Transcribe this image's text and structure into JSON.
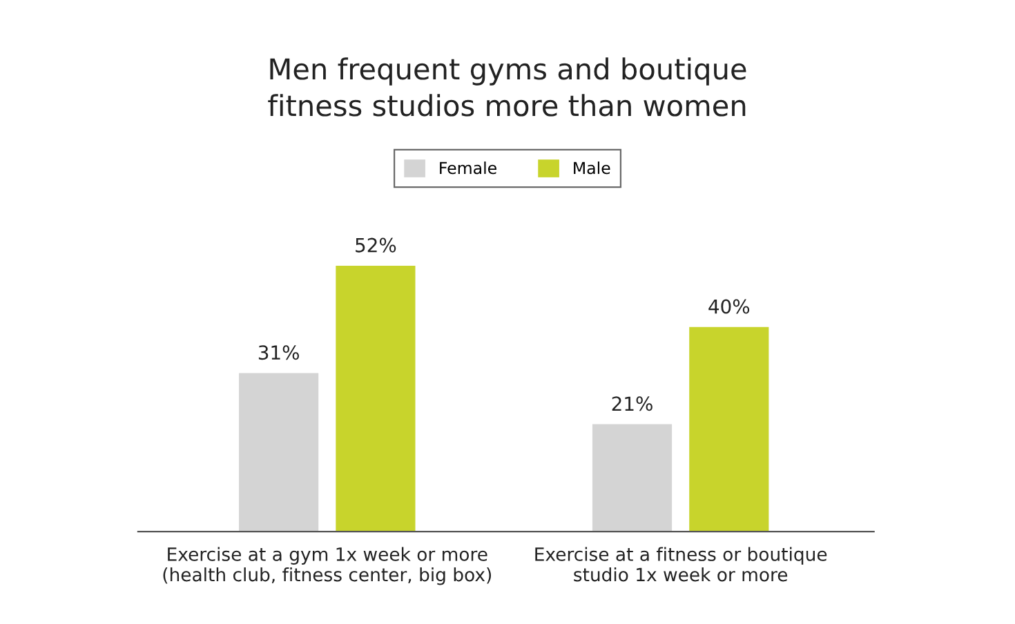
{
  "chart_data": {
    "type": "bar",
    "title": "Men frequent gyms and boutique\nfitness studios more than women",
    "categories": [
      "Exercise at a gym 1x week or more\n(health club, fitness center, big box)",
      "Exercise at a fitness or boutique\nstudio 1x week or more"
    ],
    "series": [
      {
        "name": "Female",
        "color": "#d4d4d4",
        "values": [
          31,
          21
        ],
        "value_labels": [
          "31%",
          "21%"
        ]
      },
      {
        "name": "Male",
        "color": "#c8d42c",
        "values": [
          52,
          40
        ],
        "value_labels": [
          "52%",
          "40%"
        ]
      }
    ],
    "legend": "top",
    "grid": false
  }
}
